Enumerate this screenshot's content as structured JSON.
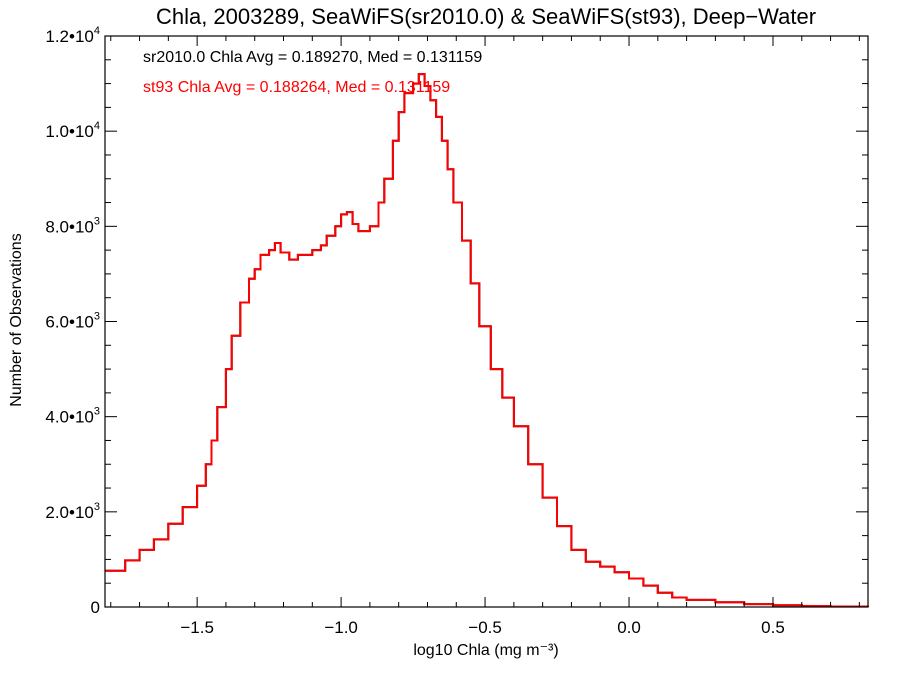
{
  "chart_data": {
    "type": "histogram",
    "title": "Chla, 2003289, SeaWiFS(sr2010.0) & SeaWiFS(st93), Deep−Water",
    "xlabel": "log10 Chla (mg m⁻³)",
    "ylabel": "Number of Observations",
    "xlim": [
      -1.82,
      0.83
    ],
    "ylim": [
      0,
      12000
    ],
    "x_ticks": [
      -1.5,
      -1.0,
      -0.5,
      0.0,
      0.5
    ],
    "x_tick_labels": [
      "−1.5",
      "−1.0",
      "−0.5",
      "0.0",
      "0.5"
    ],
    "y_ticks": [
      0,
      2000,
      4000,
      6000,
      8000,
      10000,
      12000
    ],
    "y_tick_labels": [
      {
        "mant": "0",
        "exp": ""
      },
      {
        "mant": "2.0•10",
        "exp": "3"
      },
      {
        "mant": "4.0•10",
        "exp": "3"
      },
      {
        "mant": "6.0•10",
        "exp": "3"
      },
      {
        "mant": "8.0•10",
        "exp": "3"
      },
      {
        "mant": "1.0•10",
        "exp": "4"
      },
      {
        "mant": "1.2•10",
        "exp": "4"
      }
    ],
    "annotations": [
      {
        "text": "sr2010.0 Chla Avg = 0.189270, Med = 0.131159",
        "color": "#000000"
      },
      {
        "text": "st93 Chla Avg = 0.188264, Med = 0.131159",
        "color": "#ff0000"
      }
    ],
    "series": [
      {
        "color": "#000000",
        "points": [
          [
            -1.82,
            760
          ],
          [
            -1.75,
            980
          ],
          [
            -1.7,
            1200
          ],
          [
            -1.65,
            1420
          ],
          [
            -1.6,
            1750
          ],
          [
            -1.55,
            2100
          ],
          [
            -1.5,
            2550
          ],
          [
            -1.47,
            3000
          ],
          [
            -1.45,
            3500
          ],
          [
            -1.43,
            4200
          ],
          [
            -1.4,
            5000
          ],
          [
            -1.38,
            5700
          ],
          [
            -1.35,
            6400
          ],
          [
            -1.32,
            6900
          ],
          [
            -1.3,
            7100
          ],
          [
            -1.28,
            7400
          ],
          [
            -1.25,
            7500
          ],
          [
            -1.23,
            7650
          ],
          [
            -1.21,
            7450
          ],
          [
            -1.18,
            7300
          ],
          [
            -1.15,
            7400
          ],
          [
            -1.1,
            7500
          ],
          [
            -1.07,
            7600
          ],
          [
            -1.05,
            7800
          ],
          [
            -1.02,
            8000
          ],
          [
            -1.0,
            8250
          ],
          [
            -0.98,
            8300
          ],
          [
            -0.96,
            8050
          ],
          [
            -0.94,
            7900
          ],
          [
            -0.9,
            8000
          ],
          [
            -0.87,
            8500
          ],
          [
            -0.85,
            9000
          ],
          [
            -0.82,
            9800
          ],
          [
            -0.8,
            10400
          ],
          [
            -0.78,
            10800
          ],
          [
            -0.75,
            11000
          ],
          [
            -0.73,
            11200
          ],
          [
            -0.71,
            10950
          ],
          [
            -0.69,
            10650
          ],
          [
            -0.67,
            10300
          ],
          [
            -0.65,
            9800
          ],
          [
            -0.63,
            9200
          ],
          [
            -0.61,
            8500
          ],
          [
            -0.58,
            7700
          ],
          [
            -0.55,
            6800
          ],
          [
            -0.52,
            5900
          ],
          [
            -0.48,
            5000
          ],
          [
            -0.44,
            4400
          ],
          [
            -0.4,
            3800
          ],
          [
            -0.35,
            3000
          ],
          [
            -0.3,
            2300
          ],
          [
            -0.25,
            1700
          ],
          [
            -0.2,
            1200
          ],
          [
            -0.15,
            950
          ],
          [
            -0.1,
            850
          ],
          [
            -0.05,
            730
          ],
          [
            0.0,
            600
          ],
          [
            0.05,
            450
          ],
          [
            0.1,
            300
          ],
          [
            0.15,
            200
          ],
          [
            0.2,
            150
          ],
          [
            0.3,
            100
          ],
          [
            0.4,
            60
          ],
          [
            0.5,
            35
          ],
          [
            0.6,
            20
          ],
          [
            0.7,
            10
          ],
          [
            0.83,
            5
          ]
        ]
      },
      {
        "color": "#ff0000",
        "points": [
          [
            -1.82,
            760
          ],
          [
            -1.75,
            980
          ],
          [
            -1.7,
            1200
          ],
          [
            -1.65,
            1420
          ],
          [
            -1.6,
            1750
          ],
          [
            -1.55,
            2100
          ],
          [
            -1.5,
            2550
          ],
          [
            -1.47,
            3000
          ],
          [
            -1.45,
            3500
          ],
          [
            -1.43,
            4200
          ],
          [
            -1.4,
            5000
          ],
          [
            -1.38,
            5700
          ],
          [
            -1.35,
            6400
          ],
          [
            -1.32,
            6900
          ],
          [
            -1.3,
            7100
          ],
          [
            -1.28,
            7400
          ],
          [
            -1.25,
            7500
          ],
          [
            -1.23,
            7650
          ],
          [
            -1.21,
            7450
          ],
          [
            -1.18,
            7300
          ],
          [
            -1.15,
            7400
          ],
          [
            -1.1,
            7500
          ],
          [
            -1.07,
            7600
          ],
          [
            -1.05,
            7800
          ],
          [
            -1.02,
            8000
          ],
          [
            -1.0,
            8250
          ],
          [
            -0.98,
            8300
          ],
          [
            -0.96,
            8050
          ],
          [
            -0.94,
            7900
          ],
          [
            -0.9,
            8000
          ],
          [
            -0.87,
            8500
          ],
          [
            -0.85,
            9000
          ],
          [
            -0.82,
            9800
          ],
          [
            -0.8,
            10400
          ],
          [
            -0.78,
            10800
          ],
          [
            -0.75,
            11000
          ],
          [
            -0.73,
            11200
          ],
          [
            -0.71,
            10950
          ],
          [
            -0.69,
            10650
          ],
          [
            -0.67,
            10300
          ],
          [
            -0.65,
            9800
          ],
          [
            -0.63,
            9200
          ],
          [
            -0.61,
            8500
          ],
          [
            -0.58,
            7700
          ],
          [
            -0.55,
            6800
          ],
          [
            -0.52,
            5900
          ],
          [
            -0.48,
            5000
          ],
          [
            -0.44,
            4400
          ],
          [
            -0.4,
            3800
          ],
          [
            -0.35,
            3000
          ],
          [
            -0.3,
            2300
          ],
          [
            -0.25,
            1700
          ],
          [
            -0.2,
            1200
          ],
          [
            -0.15,
            950
          ],
          [
            -0.1,
            850
          ],
          [
            -0.05,
            730
          ],
          [
            0.0,
            600
          ],
          [
            0.05,
            450
          ],
          [
            0.1,
            300
          ],
          [
            0.15,
            200
          ],
          [
            0.2,
            150
          ],
          [
            0.3,
            100
          ],
          [
            0.4,
            60
          ],
          [
            0.5,
            35
          ],
          [
            0.6,
            20
          ],
          [
            0.7,
            10
          ],
          [
            0.83,
            5
          ]
        ]
      }
    ]
  }
}
